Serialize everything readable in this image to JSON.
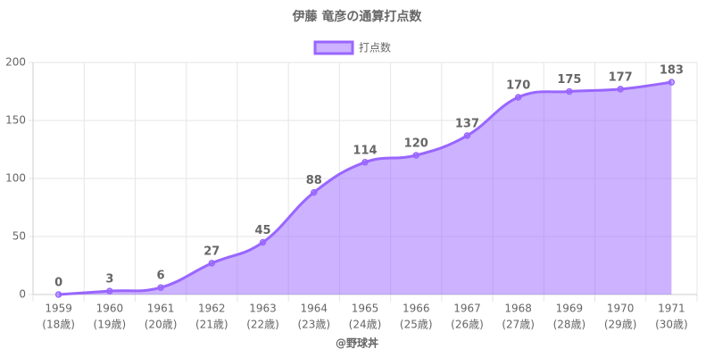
{
  "chart_data": {
    "type": "area",
    "title": "伊藤 竜彦の通算打点数",
    "footer": "@野球丼",
    "categories": [
      [
        "1959",
        "(18歳)"
      ],
      [
        "1960",
        "(19歳)"
      ],
      [
        "1961",
        "(20歳)"
      ],
      [
        "1962",
        "(21歳)"
      ],
      [
        "1963",
        "(22歳)"
      ],
      [
        "1964",
        "(23歳)"
      ],
      [
        "1965",
        "(24歳)"
      ],
      [
        "1966",
        "(25歳)"
      ],
      [
        "1967",
        "(26歳)"
      ],
      [
        "1968",
        "(27歳)"
      ],
      [
        "1969",
        "(28歳)"
      ],
      [
        "1970",
        "(29歳)"
      ],
      [
        "1971",
        "(30歳)"
      ]
    ],
    "series": [
      {
        "name": "打点数",
        "color": "#9966ff",
        "fill": "rgba(153,102,255,0.5)",
        "values": [
          0,
          3,
          6,
          27,
          45,
          88,
          114,
          120,
          137,
          170,
          175,
          177,
          183
        ]
      }
    ],
    "ylim": [
      0,
      200
    ],
    "yticks": [
      0,
      50,
      100,
      150,
      200
    ],
    "grid": true,
    "legend": "top"
  }
}
